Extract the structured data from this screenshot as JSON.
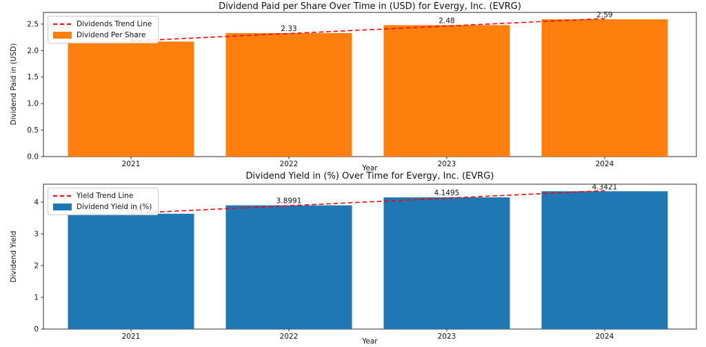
{
  "figure": {
    "background": "#ffffff"
  },
  "chart_data": [
    {
      "type": "bar",
      "title": "Dividend Paid per Share Over Time in (USD) for Evergy, Inc. (EVRG)",
      "xlabel": "Year",
      "ylabel": "Dividend Paid in (USD)",
      "categories": [
        "2021",
        "2022",
        "2023",
        "2024"
      ],
      "values": [
        2.17,
        2.33,
        2.48,
        2.59
      ],
      "bar_labels": [
        "2.17",
        "2.33",
        "2.48",
        "2.59"
      ],
      "bar_color": "#ff7f0e",
      "trend_color": "#ff0000",
      "ylim": [
        0,
        2.72
      ],
      "yticks": [
        0.0,
        0.5,
        1.0,
        1.5,
        2.0,
        2.5
      ],
      "ytick_labels": [
        "0.0",
        "0.5",
        "1.0",
        "1.5",
        "2.0",
        "2.5"
      ],
      "grid": false,
      "legend_position": "upper-left",
      "legend": [
        {
          "label": "Dividends Trend Line",
          "type": "dashed-line",
          "color": "#ff0000"
        },
        {
          "label": "Dividend Per Share",
          "type": "patch",
          "color": "#ff7f0e"
        }
      ]
    },
    {
      "type": "bar",
      "title": "Dividend Yield in (%) Over Time for Evergy, Inc. (EVRG)",
      "xlabel": "Year",
      "ylabel": "Dividend Yield",
      "categories": [
        "2021",
        "2022",
        "2023",
        "2024"
      ],
      "values": [
        3.634,
        3.8991,
        4.1495,
        4.3421
      ],
      "bar_labels": [
        "3.6340",
        "3.8991",
        "4.1495",
        "4.3421"
      ],
      "bar_color": "#1f77b4",
      "trend_color": "#ff0000",
      "ylim": [
        0,
        4.565
      ],
      "yticks": [
        0,
        1,
        2,
        3,
        4
      ],
      "ytick_labels": [
        "0",
        "1",
        "2",
        "3",
        "4"
      ],
      "grid": false,
      "legend_position": "upper-left",
      "legend": [
        {
          "label": "Yield Trend Line",
          "type": "dashed-line",
          "color": "#ff0000"
        },
        {
          "label": "Dividend Yield in (%)",
          "type": "patch",
          "color": "#1f77b4"
        }
      ]
    }
  ]
}
